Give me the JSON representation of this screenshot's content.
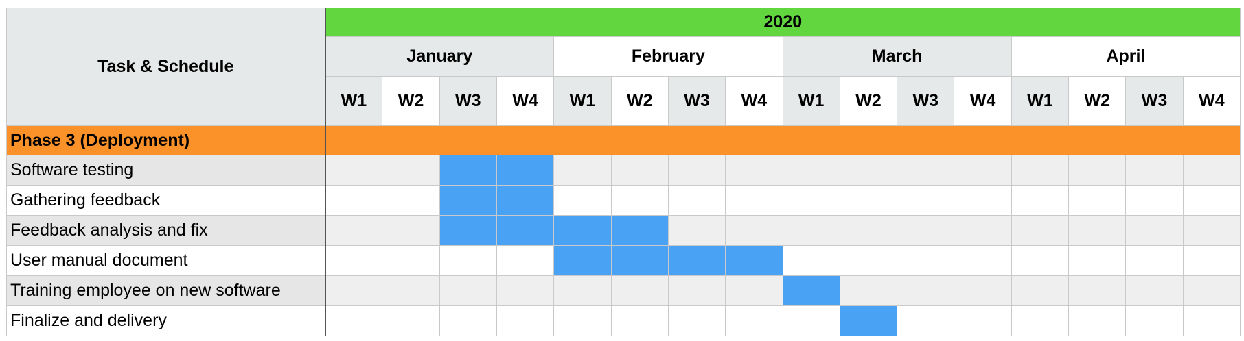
{
  "chart_data": {
    "type": "table",
    "corner_label": "Task & Schedule",
    "year": "2020",
    "months": [
      "January",
      "February",
      "March",
      "April"
    ],
    "week_labels": [
      "W1",
      "W2",
      "W3",
      "W4"
    ],
    "phase": "Phase 3 (Deployment)",
    "tasks": [
      {
        "name": "Software testing",
        "start_week": 3,
        "end_week": 4
      },
      {
        "name": "Gathering feedback",
        "start_week": 3,
        "end_week": 4
      },
      {
        "name": "Feedback analysis and fix",
        "start_week": 3,
        "end_week": 6
      },
      {
        "name": "User manual document",
        "start_week": 5,
        "end_week": 8
      },
      {
        "name": "Training employee on new software",
        "start_week": 9,
        "end_week": 9
      },
      {
        "name": "Finalize and delivery",
        "start_week": 10,
        "end_week": 10
      }
    ]
  },
  "colors": {
    "year_header": "#62d63f",
    "phase_bar": "#fa9229",
    "task_bar": "#4aa2f5",
    "alt_header": "#e6e9e9",
    "alt_row": "#efefef"
  }
}
